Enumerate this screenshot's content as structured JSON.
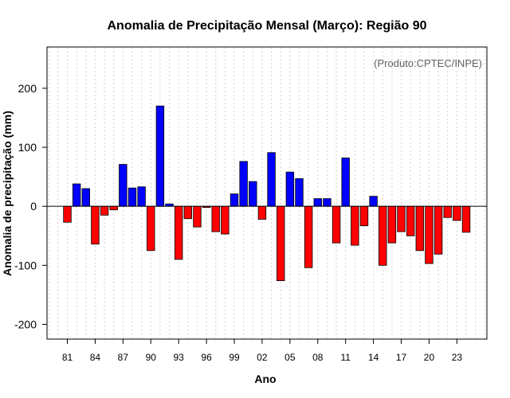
{
  "chart_data": {
    "type": "bar",
    "title": "Anomalia de Precipitação Mensal (Março): Região 90",
    "annotation": "(Produto:CPTEC/INPE)",
    "xlabel": "Ano",
    "ylabel": "Anomalia de precipitação (mm)",
    "ylim": [
      -225,
      270
    ],
    "yticks": [
      -200,
      -100,
      0,
      100,
      200
    ],
    "x": [
      1981,
      1982,
      1983,
      1984,
      1985,
      1986,
      1987,
      1988,
      1989,
      1990,
      1991,
      1992,
      1993,
      1994,
      1995,
      1996,
      1997,
      1998,
      1999,
      2000,
      2001,
      2002,
      2003,
      2004,
      2005,
      2006,
      2007,
      2008,
      2009,
      2010,
      2011,
      2012,
      2013,
      2014,
      2015,
      2016,
      2017,
      2018,
      2019,
      2020,
      2021,
      2022,
      2023,
      2024
    ],
    "values": [
      -27,
      38,
      30,
      -64,
      -15,
      -6,
      71,
      31,
      33,
      -75,
      170,
      4,
      -90,
      -21,
      -35,
      -2,
      -43,
      -47,
      21,
      76,
      42,
      -22,
      91,
      -126,
      58,
      47,
      -104,
      13,
      13,
      -62,
      82,
      -66,
      -33,
      17,
      -100,
      -62,
      -43,
      -50,
      -75,
      -97,
      -81,
      -19,
      -24,
      -44
    ],
    "xtick_labels": [
      {
        "x": 1981,
        "label": "81"
      },
      {
        "x": 1984,
        "label": "84"
      },
      {
        "x": 1987,
        "label": "87"
      },
      {
        "x": 1990,
        "label": "90"
      },
      {
        "x": 1993,
        "label": "93"
      },
      {
        "x": 1996,
        "label": "96"
      },
      {
        "x": 1999,
        "label": "99"
      },
      {
        "x": 2002,
        "label": "02"
      },
      {
        "x": 2005,
        "label": "05"
      },
      {
        "x": 2008,
        "label": "08"
      },
      {
        "x": 2011,
        "label": "11"
      },
      {
        "x": 2014,
        "label": "14"
      },
      {
        "x": 2017,
        "label": "17"
      },
      {
        "x": 2020,
        "label": "20"
      },
      {
        "x": 2023,
        "label": "23"
      }
    ],
    "grid": true,
    "colors": {
      "positive": "#0000ff",
      "negative": "#ff0000",
      "grid": "#d0d0d0",
      "zero_line": "#000000"
    }
  }
}
